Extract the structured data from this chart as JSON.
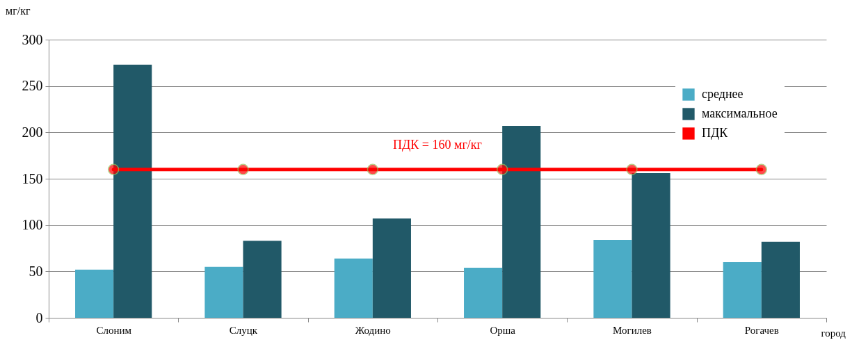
{
  "chart_data": {
    "type": "bar",
    "ylabel": "мг/кг",
    "xlabel": "город",
    "categories": [
      "Слоним",
      "Слуцк",
      "Жодино",
      "Орша",
      "Могилев",
      "Рогачев"
    ],
    "series": [
      {
        "name": "среднее",
        "color": "#4bacc6",
        "values": [
          52,
          55,
          64,
          54,
          84,
          60
        ]
      },
      {
        "name": "максимальное",
        "color": "#215968",
        "values": [
          273,
          83,
          107,
          207,
          156,
          82
        ]
      },
      {
        "name": "ПДК",
        "color": "#ff0000",
        "type": "line",
        "marker": "circle",
        "values": [
          160,
          160,
          160,
          160,
          160,
          160
        ]
      }
    ],
    "annotations": [
      {
        "text": "ПДК = 160 мг/кг",
        "y": 160
      }
    ],
    "ylim": [
      0,
      300
    ],
    "yticks": [
      0,
      50,
      100,
      150,
      200,
      250,
      300
    ],
    "grid": "y",
    "legend": "top right"
  }
}
